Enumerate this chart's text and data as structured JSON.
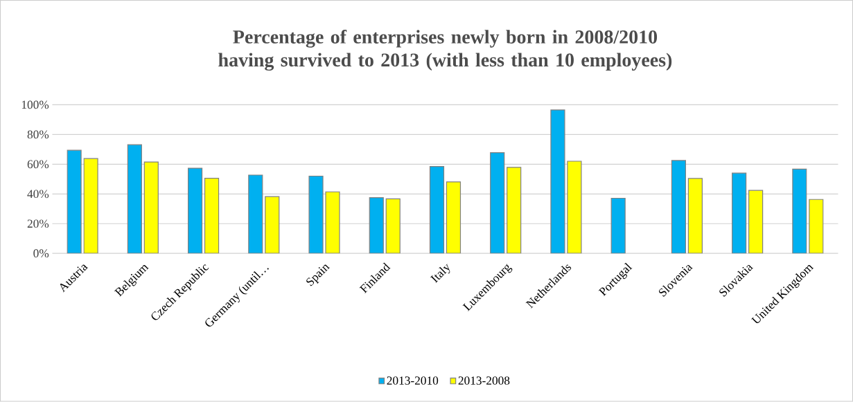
{
  "chart_data": {
    "type": "bar",
    "title": "Percentage of enterprises newly born in 2008/2010 having survived to 2013 (with less than 10 employees)",
    "categories": [
      "Austria",
      "Belgium",
      "Czech Republic",
      "Germany (until…",
      "Spain",
      "Finland",
      "Italy",
      "Luxembourg",
      "Netherlands",
      "Portugal",
      "Slovenia",
      "Slovakia",
      "United Kingdom"
    ],
    "series": [
      {
        "name": "2013-2010",
        "color": "#00b0f0",
        "values": [
          69.4,
          73.1,
          57.3,
          52.7,
          52.0,
          37.5,
          58.5,
          67.8,
          96.5,
          37.1,
          62.5,
          54.0,
          56.7
        ]
      },
      {
        "name": "2013-2008",
        "color": "#ffff00",
        "values": [
          63.8,
          61.5,
          50.5,
          38.2,
          41.4,
          36.7,
          48.1,
          57.9,
          62.0,
          null,
          50.4,
          42.4,
          36.3
        ]
      }
    ],
    "ylim": [
      0,
      100
    ],
    "yticks": [
      {
        "value": 0,
        "label": "0%"
      },
      {
        "value": 20,
        "label": "20%"
      },
      {
        "value": 40,
        "label": "40%"
      },
      {
        "value": 60,
        "label": "60%"
      },
      {
        "value": 80,
        "label": "80%"
      },
      {
        "value": 100,
        "label": "100%"
      }
    ],
    "grid": "y",
    "legend": "bottom"
  }
}
